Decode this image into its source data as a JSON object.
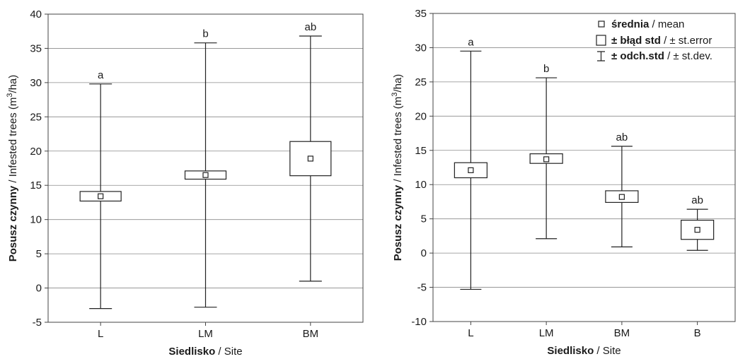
{
  "chart_data": [
    {
      "type": "box",
      "xlabel_bold": "Siedlisko",
      "xlabel_rest": " / Site",
      "ylabel_bold": "Posusz czynny",
      "ylabel_rest": " / Infested trees (m",
      "ylabel_sup": "3",
      "ylabel_end": "/ha)",
      "ylim": [
        -5,
        40
      ],
      "yticks": [
        -5,
        0,
        5,
        10,
        15,
        20,
        25,
        30,
        35,
        40
      ],
      "grid": true,
      "categories": [
        "L",
        "LM",
        "BM"
      ],
      "mean": [
        13.4,
        16.5,
        18.9
      ],
      "se_low": [
        12.7,
        15.9,
        16.4
      ],
      "se_high": [
        14.1,
        17.1,
        21.4
      ],
      "sd_low": [
        -3.0,
        -2.8,
        1.0
      ],
      "sd_high": [
        29.8,
        35.8,
        36.8
      ],
      "labels": [
        "a",
        "b",
        "ab"
      ]
    },
    {
      "type": "box",
      "xlabel_bold": "Siedlisko",
      "xlabel_rest": " / Site",
      "ylabel_bold": "Posusz czynny",
      "ylabel_rest": " / Infested trees (m",
      "ylabel_sup": "3",
      "ylabel_end": "/ha)",
      "ylim": [
        -10,
        35
      ],
      "yticks": [
        -10,
        -5,
        0,
        5,
        10,
        15,
        20,
        25,
        30,
        35
      ],
      "grid": true,
      "categories": [
        "L",
        "LM",
        "BM",
        "B"
      ],
      "mean": [
        12.1,
        13.7,
        8.2,
        3.4
      ],
      "se_low": [
        11.0,
        13.1,
        7.4,
        2.0
      ],
      "se_high": [
        13.2,
        14.5,
        9.1,
        4.8
      ],
      "sd_low": [
        -5.3,
        2.1,
        0.9,
        0.4
      ],
      "sd_high": [
        29.5,
        25.6,
        15.6,
        6.4
      ],
      "labels": [
        "a",
        "b",
        "ab",
        "ab"
      ],
      "legend": {
        "position": "top-right",
        "items": [
          {
            "symbol": "mean",
            "bold": "średnia",
            "rest": " / mean"
          },
          {
            "symbol": "box",
            "bold": "± błąd std",
            "rest": " / ± st.error"
          },
          {
            "symbol": "whisker",
            "bold": "± odch.std",
            "rest": " / ± st.dev."
          }
        ]
      }
    }
  ]
}
